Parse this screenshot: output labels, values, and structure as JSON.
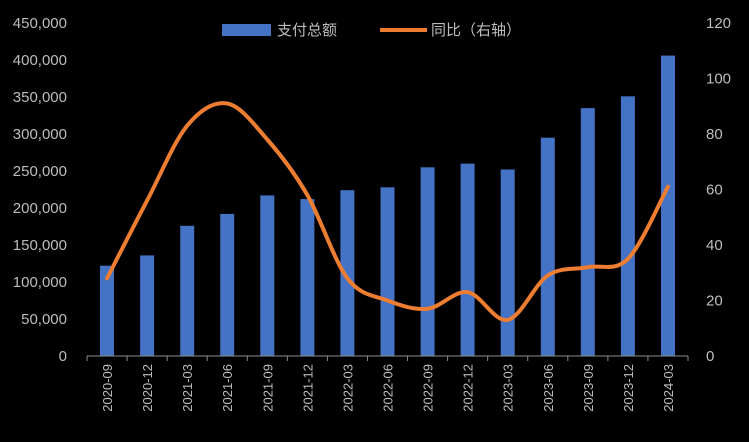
{
  "chart_data": {
    "type": "bar",
    "categories": [
      "2020-09",
      "2020-12",
      "2021-03",
      "2021-06",
      "2021-09",
      "2021-12",
      "2022-03",
      "2022-06",
      "2022-09",
      "2022-12",
      "2023-03",
      "2023-06",
      "2023-09",
      "2023-12",
      "2024-03"
    ],
    "series": [
      {
        "name": "支付总额",
        "type": "bar",
        "axis": "left",
        "color": "#4472c4",
        "values": [
          122000,
          136000,
          176000,
          192000,
          217000,
          212000,
          224000,
          228000,
          255000,
          260000,
          252000,
          295000,
          335000,
          351000,
          406000
        ]
      },
      {
        "name": "同比（右轴）",
        "type": "line",
        "axis": "right",
        "color": "#ed7d31",
        "values": [
          28,
          56,
          83,
          91,
          78,
          58,
          28,
          20,
          17,
          23,
          13,
          29,
          32,
          35,
          61
        ]
      }
    ],
    "y_left": {
      "min": 0,
      "max": 450000,
      "step": 50000,
      "tick_labels": [
        "0",
        "50,000",
        "100,000",
        "150,000",
        "200,000",
        "250,000",
        "300,000",
        "350,000",
        "400,000",
        "450,000"
      ]
    },
    "y_right": {
      "min": 0,
      "max": 120,
      "step": 20,
      "tick_labels": [
        "0",
        "20",
        "40",
        "60",
        "80",
        "100",
        "120"
      ]
    },
    "legend": {
      "placement": "top-center"
    },
    "grid": false
  }
}
